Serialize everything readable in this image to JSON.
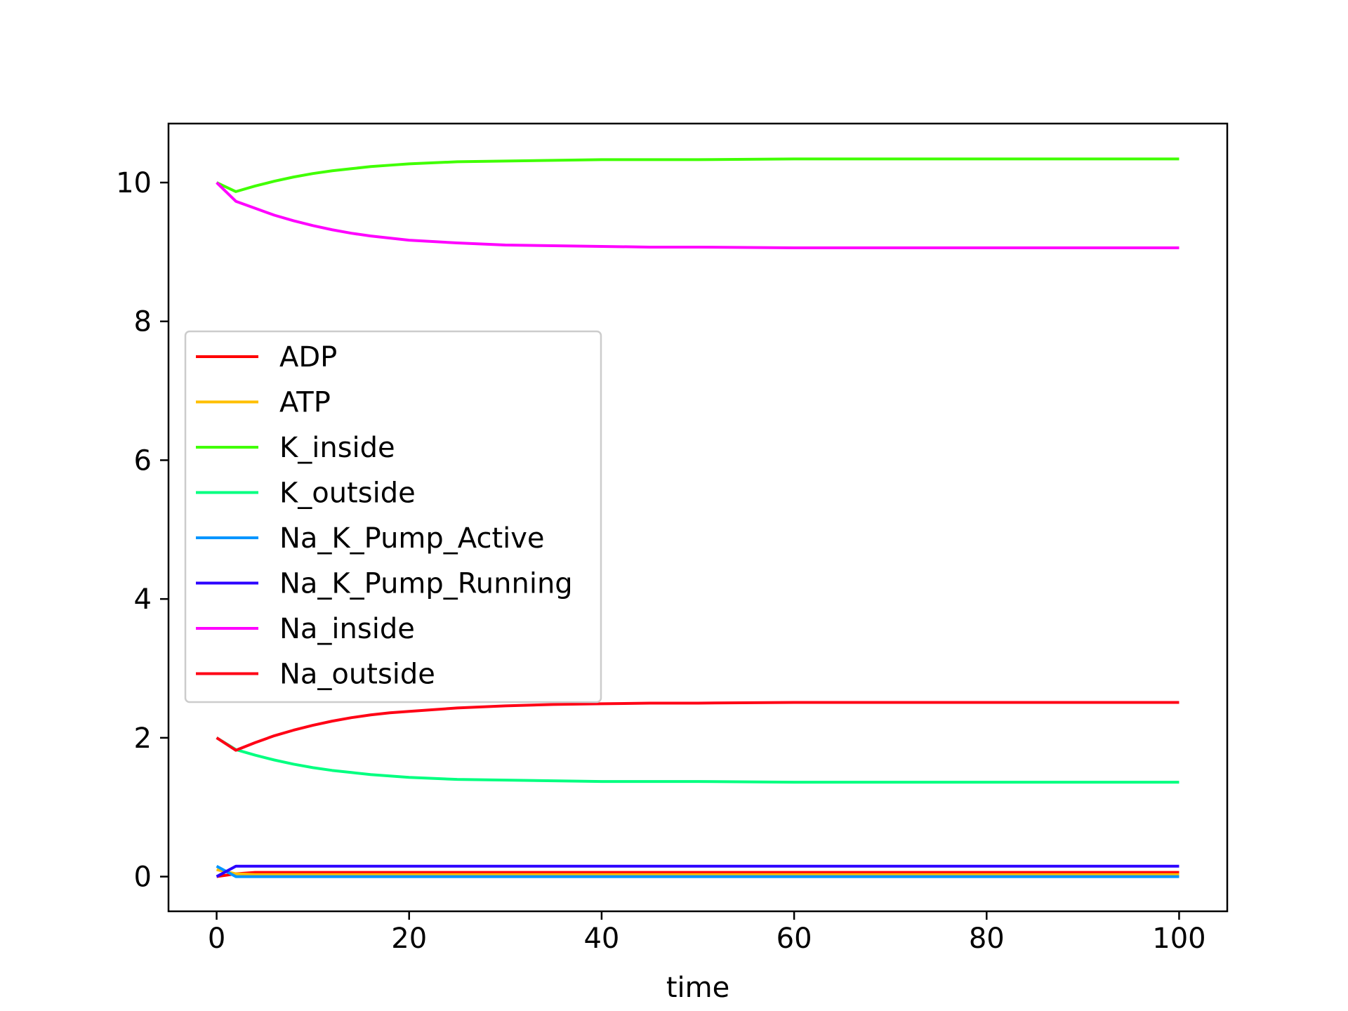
{
  "chart_data": {
    "type": "line",
    "title": "",
    "xlabel": "time",
    "ylabel": "",
    "xlim": [
      -5,
      105
    ],
    "ylim": [
      -0.5,
      10.85
    ],
    "xticks": [
      0,
      20,
      40,
      60,
      80,
      100
    ],
    "yticks": [
      0,
      2,
      4,
      6,
      8,
      10
    ],
    "grid": false,
    "legend_position": "center-left",
    "x": [
      0,
      2,
      4,
      6,
      8,
      10,
      12,
      14,
      16,
      18,
      20,
      25,
      30,
      35,
      40,
      45,
      50,
      60,
      70,
      80,
      90,
      100
    ],
    "series": [
      {
        "name": "ADP",
        "color": "#ff0000",
        "values": [
          0.0,
          0.04,
          0.06,
          0.06,
          0.06,
          0.06,
          0.06,
          0.06,
          0.06,
          0.06,
          0.06,
          0.06,
          0.06,
          0.06,
          0.06,
          0.06,
          0.06,
          0.06,
          0.06,
          0.06,
          0.06,
          0.06
        ]
      },
      {
        "name": "ATP",
        "color": "#ffbf00",
        "values": [
          0.1,
          0.04,
          0.03,
          0.03,
          0.03,
          0.03,
          0.03,
          0.03,
          0.03,
          0.03,
          0.03,
          0.03,
          0.03,
          0.03,
          0.03,
          0.03,
          0.03,
          0.03,
          0.03,
          0.03,
          0.03,
          0.03
        ]
      },
      {
        "name": "K_inside",
        "color": "#40ff00",
        "values": [
          10.0,
          9.87,
          9.95,
          10.02,
          10.08,
          10.13,
          10.17,
          10.2,
          10.23,
          10.25,
          10.27,
          10.3,
          10.31,
          10.32,
          10.33,
          10.33,
          10.33,
          10.34,
          10.34,
          10.34,
          10.34,
          10.34
        ]
      },
      {
        "name": "K_outside",
        "color": "#00ff80",
        "values": [
          2.0,
          1.83,
          1.75,
          1.68,
          1.62,
          1.57,
          1.53,
          1.5,
          1.47,
          1.45,
          1.43,
          1.4,
          1.39,
          1.38,
          1.37,
          1.37,
          1.37,
          1.36,
          1.36,
          1.36,
          1.36,
          1.36
        ]
      },
      {
        "name": "Na_K_Pump_Active",
        "color": "#0095ff",
        "values": [
          0.15,
          0.0,
          0.0,
          0.0,
          0.0,
          0.0,
          0.0,
          0.0,
          0.0,
          0.0,
          0.0,
          0.0,
          0.0,
          0.0,
          0.0,
          0.0,
          0.0,
          0.0,
          0.0,
          0.0,
          0.0,
          0.0
        ]
      },
      {
        "name": "Na_K_Pump_Running",
        "color": "#2b00ff",
        "values": [
          0.0,
          0.15,
          0.15,
          0.15,
          0.15,
          0.15,
          0.15,
          0.15,
          0.15,
          0.15,
          0.15,
          0.15,
          0.15,
          0.15,
          0.15,
          0.15,
          0.15,
          0.15,
          0.15,
          0.15,
          0.15,
          0.15
        ]
      },
      {
        "name": "Na_inside",
        "color": "#ff00ff",
        "values": [
          10.0,
          9.73,
          9.63,
          9.53,
          9.45,
          9.38,
          9.32,
          9.27,
          9.23,
          9.2,
          9.17,
          9.13,
          9.1,
          9.09,
          9.08,
          9.07,
          9.07,
          9.06,
          9.06,
          9.06,
          9.06,
          9.06
        ]
      },
      {
        "name": "Na_outside",
        "color": "#ff0015",
        "values": [
          2.0,
          1.82,
          1.93,
          2.03,
          2.11,
          2.18,
          2.24,
          2.29,
          2.33,
          2.36,
          2.38,
          2.43,
          2.46,
          2.48,
          2.49,
          2.5,
          2.5,
          2.51,
          2.51,
          2.51,
          2.51,
          2.51
        ]
      }
    ]
  }
}
